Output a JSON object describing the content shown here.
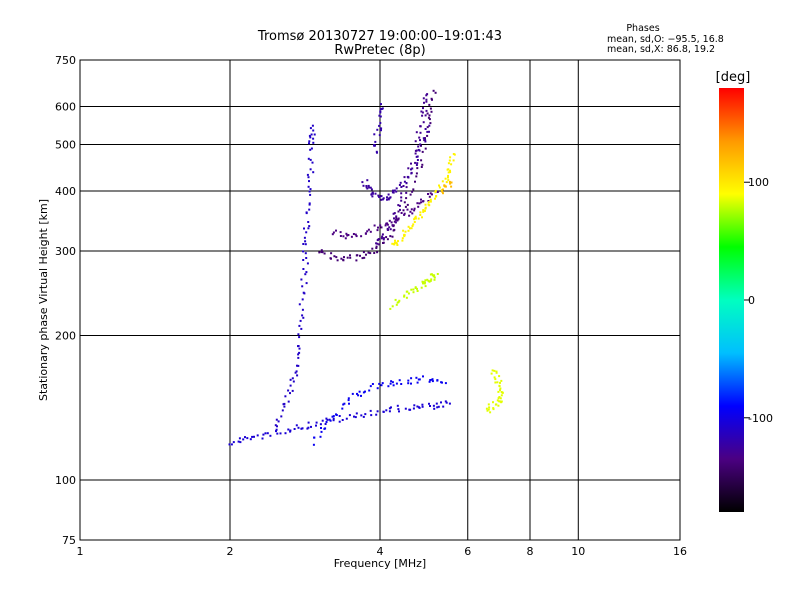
{
  "chart_data": {
    "type": "scatter",
    "title": "Tromsø 20130727 19:00:00–19:01:43",
    "subtitle": "RwPretec (8p)",
    "xlabel": "Frequency [MHz]",
    "ylabel": "Stationary phase Virtual Height [km]",
    "x_scale": "log",
    "y_scale": "log",
    "xlim": [
      1,
      16
    ],
    "ylim": [
      75,
      750
    ],
    "xticks": [
      1,
      2,
      4,
      6,
      8,
      10,
      16
    ],
    "xtick_labels": [
      "1",
      "2",
      "4",
      "6",
      "8",
      "10",
      "16"
    ],
    "yticks": [
      75,
      100,
      200,
      300,
      400,
      500,
      600,
      750
    ],
    "ytick_labels": [
      "75",
      "100",
      "200",
      "300",
      "400",
      "500",
      "600",
      "750"
    ],
    "grid": true,
    "phase_stats": {
      "title": "Phases",
      "line_o": "mean, sd,O: −95.5, 16.8",
      "line_x": "mean, sd,X:  86.8, 19.2"
    },
    "colorbar": {
      "label": "[deg]",
      "min": -180,
      "max": 180,
      "ticks": [
        100,
        0,
        -100
      ],
      "tick_labels": [
        "100",
        "0",
        "-100"
      ],
      "colors": [
        "#000000",
        "#4b0082",
        "#0000ff",
        "#00bfff",
        "#00ffc0",
        "#00ff00",
        "#ffff00",
        "#ff9900",
        "#ff0000"
      ]
    },
    "traces": [
      {
        "name": "",
        "phase": -110,
        "points": [
          [
            2.45,
            130
          ],
          [
            2.6,
            150
          ],
          [
            2.7,
            170
          ],
          [
            2.75,
            200
          ],
          [
            2.8,
            250
          ],
          [
            2.82,
            300
          ],
          [
            2.85,
            350
          ],
          [
            2.88,
            420
          ],
          [
            2.9,
            500
          ],
          [
            2.92,
            550
          ]
        ]
      },
      {
        "name": "",
        "phase": -105,
        "points": [
          [
            2.0,
            120
          ],
          [
            2.2,
            123
          ],
          [
            2.5,
            127
          ],
          [
            2.8,
            130
          ],
          [
            3.1,
            133
          ],
          [
            3.5,
            136
          ],
          [
            4.0,
            140
          ],
          [
            4.5,
            142
          ],
          [
            5.0,
            143
          ],
          [
            5.5,
            145
          ]
        ]
      },
      {
        "name": "",
        "phase": -140,
        "points": [
          [
            3.0,
            300
          ],
          [
            3.3,
            290
          ],
          [
            3.6,
            292
          ],
          [
            3.9,
            303
          ],
          [
            4.2,
            330
          ],
          [
            4.5,
            380
          ],
          [
            4.8,
            460
          ],
          [
            5.0,
            560
          ],
          [
            5.1,
            650
          ]
        ]
      },
      {
        "name": "",
        "phase": -130,
        "points": [
          [
            3.9,
            310
          ],
          [
            4.1,
            330
          ],
          [
            4.3,
            360
          ],
          [
            4.5,
            420
          ],
          [
            4.7,
            500
          ],
          [
            4.85,
            580
          ],
          [
            4.95,
            640
          ]
        ]
      },
      {
        "name": "",
        "phase": -125,
        "points": [
          [
            3.7,
            420
          ],
          [
            3.8,
            400
          ],
          [
            4.0,
            385
          ],
          [
            4.2,
            395
          ],
          [
            4.5,
            420
          ],
          [
            4.8,
            480
          ],
          [
            5.0,
            550
          ]
        ]
      },
      {
        "name": "",
        "phase": -135,
        "points": [
          [
            3.2,
            330
          ],
          [
            3.5,
            320
          ],
          [
            3.9,
            335
          ],
          [
            4.2,
            345
          ],
          [
            4.5,
            360
          ],
          [
            4.8,
            380
          ],
          [
            5.2,
            400
          ]
        ]
      },
      {
        "name": "",
        "phase": -120,
        "points": [
          [
            3.9,
            480
          ],
          [
            3.95,
            550
          ],
          [
            4.0,
            610
          ]
        ]
      },
      {
        "name": "",
        "phase": 95,
        "points": [
          [
            4.2,
            310
          ],
          [
            4.4,
            320
          ],
          [
            4.6,
            340
          ],
          [
            4.8,
            360
          ],
          [
            5.0,
            380
          ],
          [
            5.3,
            410
          ],
          [
            5.5,
            440
          ],
          [
            5.6,
            480
          ]
        ]
      },
      {
        "name": "",
        "phase": 120,
        "points": [
          [
            5.3,
            400
          ],
          [
            5.5,
            420
          ]
        ]
      },
      {
        "name": "",
        "phase": 80,
        "points": [
          [
            4.2,
            230
          ],
          [
            4.5,
            245
          ],
          [
            4.8,
            255
          ],
          [
            5.0,
            262
          ],
          [
            5.2,
            270
          ]
        ]
      },
      {
        "name": "",
        "phase": -95,
        "points": [
          [
            2.9,
            120
          ],
          [
            3.2,
            135
          ],
          [
            3.5,
            150
          ],
          [
            3.9,
            158
          ],
          [
            4.4,
            160
          ],
          [
            4.9,
            163
          ],
          [
            5.4,
            160
          ]
        ]
      },
      {
        "name": "",
        "phase": 85,
        "points": [
          [
            6.5,
            140
          ],
          [
            6.8,
            145
          ],
          [
            7.0,
            150
          ],
          [
            6.9,
            160
          ],
          [
            6.7,
            170
          ]
        ]
      }
    ]
  }
}
